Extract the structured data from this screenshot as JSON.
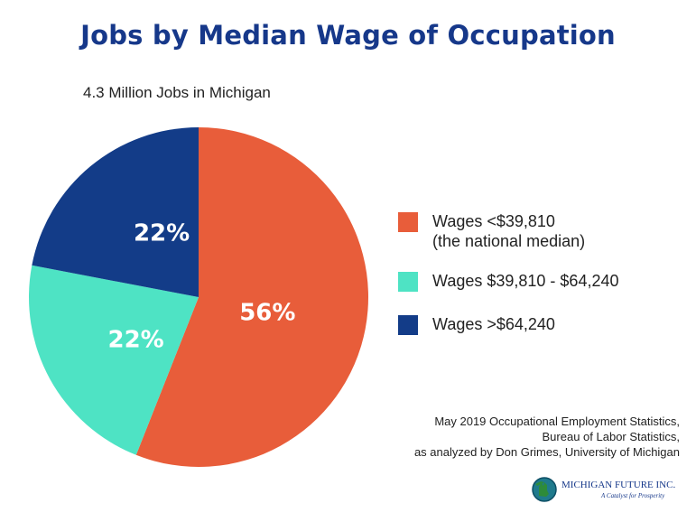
{
  "title": "Jobs by Median Wage of Occupation",
  "subtitle": "4.3 Million Jobs in Michigan",
  "chart_data": {
    "type": "pie",
    "title": "Jobs by Median Wage of Occupation",
    "subtitle": "4.3 Million Jobs in Michigan",
    "slices": [
      {
        "label": "Wages <$39,810 (the national median)",
        "value": 56,
        "display": "56%",
        "color": "#e85d3a"
      },
      {
        "label": "Wages $39,810 - $64,240",
        "value": 22,
        "display": "22%",
        "color": "#4ee3c4"
      },
      {
        "label": "Wages >$64,240",
        "value": 22,
        "display": "22%",
        "color": "#133c88"
      }
    ],
    "start": "12 o'clock",
    "direction": "clockwise",
    "legend_position": "right"
  },
  "legend": {
    "items": [
      {
        "line1": "Wages <$39,810",
        "line2": "(the national median)",
        "color": "#e85d3a"
      },
      {
        "line1": "Wages $39,810 - $64,240",
        "line2": "",
        "color": "#4ee3c4"
      },
      {
        "line1": "Wages >$64,240",
        "line2": "",
        "color": "#133c88"
      }
    ]
  },
  "source": {
    "line1": "May 2019 Occupational Employment Statistics,",
    "line2": "Bureau of Labor Statistics,",
    "line3": "as analyzed by Don Grimes, University of Michigan"
  },
  "logo": {
    "name": "MICHIGAN FUTURE INC.",
    "tagline": "A Catalyst for Prosperity",
    "icon": "michigan-map-globe-icon"
  },
  "colors": {
    "title": "#16388a",
    "low_wage": "#e85d3a",
    "mid_wage": "#4ee3c4",
    "high_wage": "#133c88"
  }
}
